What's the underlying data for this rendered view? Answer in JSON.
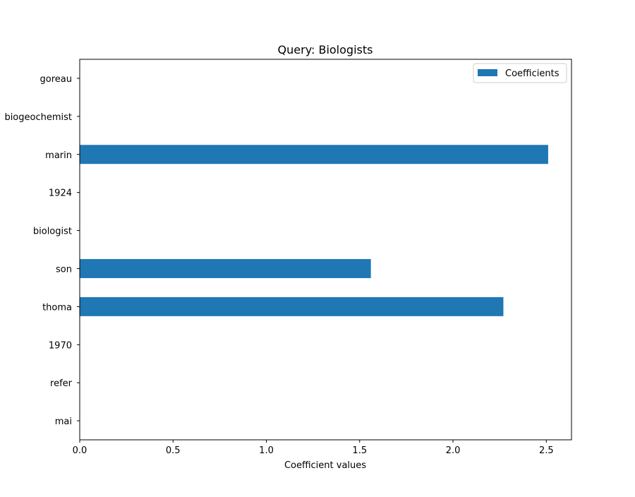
{
  "chart_data": {
    "type": "bar",
    "orientation": "horizontal",
    "title": "Query: Biologists",
    "xlabel": "Coefficient values",
    "ylabel": "",
    "categories": [
      "goreau",
      "biogeochemist",
      "marin",
      "1924",
      "biologist",
      "son",
      "thoma",
      "1970",
      "refer",
      "mai"
    ],
    "series": [
      {
        "name": "Coefficients",
        "values": [
          0,
          0,
          2.51,
          0,
          0,
          1.56,
          2.27,
          0,
          0,
          0
        ],
        "color": "#1f77b4"
      }
    ],
    "xlim": [
      0,
      2.635
    ],
    "xticks": [
      0.0,
      0.5,
      1.0,
      1.5,
      2.0,
      2.5
    ],
    "xtick_labels": [
      "0.0",
      "0.5",
      "1.0",
      "1.5",
      "2.0",
      "2.5"
    ],
    "grid": false,
    "legend_position": "top-right"
  }
}
